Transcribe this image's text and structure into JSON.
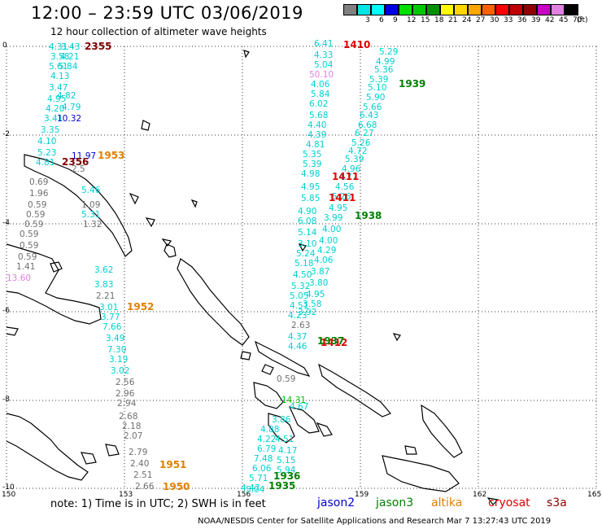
{
  "header": {
    "title": "12:00 – 23:59 UTC 03/06/2019",
    "subtitle": "12 hour collection of altimeter wave heights"
  },
  "legend": {
    "unit_label": "(ft)",
    "items": [
      {
        "label": "",
        "color": "#808080"
      },
      {
        "label": "3",
        "color": "#00e5e5"
      },
      {
        "label": "6",
        "color": "#00ffff"
      },
      {
        "label": "9",
        "color": "#0000e0"
      },
      {
        "label": "12",
        "color": "#00e000"
      },
      {
        "label": "15",
        "color": "#00c800"
      },
      {
        "label": "18",
        "color": "#009000"
      },
      {
        "label": "21",
        "color": "#ffff00"
      },
      {
        "label": "24",
        "color": "#ffd700"
      },
      {
        "label": "27",
        "color": "#ffa500"
      },
      {
        "label": "30",
        "color": "#ff6000"
      },
      {
        "label": "33",
        "color": "#ff0000"
      },
      {
        "label": "36",
        "color": "#c00000"
      },
      {
        "label": "39",
        "color": "#900000"
      },
      {
        "label": "42",
        "color": "#c800c8"
      },
      {
        "label": "45",
        "color": "#e080e0"
      },
      {
        "label": "70",
        "color": "#000000"
      }
    ]
  },
  "axes": {
    "lat_labels": [
      "0",
      "-2",
      "-4",
      "-6",
      "-8",
      "-10"
    ],
    "lon_labels": [
      "150",
      "153",
      "156",
      "159",
      "162",
      "165"
    ]
  },
  "observations": [
    {
      "text": "4.31",
      "color": "#00d0d0"
    },
    {
      "text": "3.43",
      "color": "#00d0d0"
    },
    {
      "text": "3.58",
      "color": "#00d0d0"
    },
    {
      "text": "4.21",
      "color": "#00d0d0"
    },
    {
      "text": "5.61",
      "color": "#00d0d0"
    },
    {
      "text": "5.84",
      "color": "#00d0d0"
    },
    {
      "text": "4.13",
      "color": "#00d0d0"
    },
    {
      "text": "3.47",
      "color": "#00d0d0"
    },
    {
      "text": "4.82",
      "color": "#00d0d0"
    },
    {
      "text": "4.95",
      "color": "#00d0d0"
    },
    {
      "text": "4.79",
      "color": "#00d0d0"
    },
    {
      "text": "4.20",
      "color": "#00d0d0"
    },
    {
      "text": "3.41",
      "color": "#00d0d0"
    },
    {
      "text": "10.32",
      "color": "#0000d0"
    },
    {
      "text": "3.35",
      "color": "#00d0d0"
    },
    {
      "text": "4.10",
      "color": "#00d0d0"
    },
    {
      "text": "5.23",
      "color": "#00d0d0"
    },
    {
      "text": "4.81",
      "color": "#00d0d0"
    },
    {
      "text": "11.97",
      "color": "#0000d0"
    },
    {
      "text": "2.5",
      "color": "#707070"
    },
    {
      "text": "0.69",
      "color": "#707070"
    },
    {
      "text": "1.96",
      "color": "#707070"
    },
    {
      "text": "0.59",
      "color": "#707070"
    },
    {
      "text": "0.59",
      "color": "#707070"
    },
    {
      "text": "0.59",
      "color": "#707070"
    },
    {
      "text": "0.59",
      "color": "#707070"
    },
    {
      "text": "0.59",
      "color": "#707070"
    },
    {
      "text": "0.59",
      "color": "#707070"
    },
    {
      "text": "1.41",
      "color": "#707070"
    },
    {
      "text": "13.60",
      "color": "#e080e0"
    },
    {
      "text": "5.46",
      "color": "#00d0d0"
    },
    {
      "text": "1.09",
      "color": "#707070"
    },
    {
      "text": "5.31",
      "color": "#00d0d0"
    },
    {
      "text": "1.32",
      "color": "#707070"
    },
    {
      "text": "3.62",
      "color": "#00d0d0"
    },
    {
      "text": "3.83",
      "color": "#00d0d0"
    },
    {
      "text": "2.21",
      "color": "#707070"
    },
    {
      "text": "3.01",
      "color": "#00d0d0"
    },
    {
      "text": "3.77",
      "color": "#00d0d0"
    },
    {
      "text": "7.66",
      "color": "#00d0d0"
    },
    {
      "text": "3.49",
      "color": "#00d0d0"
    },
    {
      "text": "7.30",
      "color": "#00d0d0"
    },
    {
      "text": "3.19",
      "color": "#00d0d0"
    },
    {
      "text": "3.02",
      "color": "#00d0d0"
    },
    {
      "text": "2.56",
      "color": "#707070"
    },
    {
      "text": "2.96",
      "color": "#707070"
    },
    {
      "text": "2.94",
      "color": "#707070"
    },
    {
      "text": "2.68",
      "color": "#707070"
    },
    {
      "text": "2.18",
      "color": "#707070"
    },
    {
      "text": "2.07",
      "color": "#707070"
    },
    {
      "text": "2.79",
      "color": "#707070"
    },
    {
      "text": "2.40",
      "color": "#707070"
    },
    {
      "text": "2.51",
      "color": "#707070"
    },
    {
      "text": "2.66",
      "color": "#707070"
    },
    {
      "text": "6.41",
      "color": "#00d0d0"
    },
    {
      "text": "4.33",
      "color": "#00d0d0"
    },
    {
      "text": "5.04",
      "color": "#00d0d0"
    },
    {
      "text": "50.10",
      "color": "#e080e0"
    },
    {
      "text": "4.06",
      "color": "#00d0d0"
    },
    {
      "text": "5.84",
      "color": "#00d0d0"
    },
    {
      "text": "6.02",
      "color": "#00d0d0"
    },
    {
      "text": "5.68",
      "color": "#00d0d0"
    },
    {
      "text": "4.40",
      "color": "#00d0d0"
    },
    {
      "text": "4.39",
      "color": "#00d0d0"
    },
    {
      "text": "4.81",
      "color": "#00d0d0"
    },
    {
      "text": "5.35",
      "color": "#00d0d0"
    },
    {
      "text": "5.39",
      "color": "#00d0d0"
    },
    {
      "text": "4.98",
      "color": "#00d0d0"
    },
    {
      "text": "4.95",
      "color": "#00d0d0"
    },
    {
      "text": "5.85",
      "color": "#00d0d0"
    },
    {
      "text": "4.90",
      "color": "#00d0d0"
    },
    {
      "text": "6.08",
      "color": "#00d0d0"
    },
    {
      "text": "5.14",
      "color": "#00d0d0"
    },
    {
      "text": "3.10",
      "color": "#00d0d0"
    },
    {
      "text": "5.24",
      "color": "#00d0d0"
    },
    {
      "text": "5.18",
      "color": "#00d0d0"
    },
    {
      "text": "4.50",
      "color": "#00d0d0"
    },
    {
      "text": "5.32",
      "color": "#00d0d0"
    },
    {
      "text": "5.05",
      "color": "#00d0d0"
    },
    {
      "text": "4.51",
      "color": "#00d0d0"
    },
    {
      "text": "4.23",
      "color": "#00d0d0"
    },
    {
      "text": "2.63",
      "color": "#707070"
    },
    {
      "text": "4.37",
      "color": "#00d0d0"
    },
    {
      "text": "4.46",
      "color": "#00d0d0"
    },
    {
      "text": "5.29",
      "color": "#00d0d0"
    },
    {
      "text": "4.99",
      "color": "#00d0d0"
    },
    {
      "text": "5.36",
      "color": "#00d0d0"
    },
    {
      "text": "5.39",
      "color": "#00d0d0"
    },
    {
      "text": "5.10",
      "color": "#00d0d0"
    },
    {
      "text": "5.90",
      "color": "#00d0d0"
    },
    {
      "text": "5.66",
      "color": "#00d0d0"
    },
    {
      "text": "6.43",
      "color": "#00d0d0"
    },
    {
      "text": "6.68",
      "color": "#00d0d0"
    },
    {
      "text": "6.27",
      "color": "#00d0d0"
    },
    {
      "text": "5.26",
      "color": "#00d0d0"
    },
    {
      "text": "4.72",
      "color": "#00d0d0"
    },
    {
      "text": "5.39",
      "color": "#00d0d0"
    },
    {
      "text": "4.96",
      "color": "#00d0d0"
    },
    {
      "text": "4.77",
      "color": "#00d0d0"
    },
    {
      "text": "4.56",
      "color": "#00d0d0"
    },
    {
      "text": "5.26",
      "color": "#00d0d0"
    },
    {
      "text": "4.95",
      "color": "#00d0d0"
    },
    {
      "text": "3.99",
      "color": "#00d0d0"
    },
    {
      "text": "4.00",
      "color": "#00d0d0"
    },
    {
      "text": "4.00",
      "color": "#00d0d0"
    },
    {
      "text": "4.29",
      "color": "#00d0d0"
    },
    {
      "text": "4.06",
      "color": "#00d0d0"
    },
    {
      "text": "3.87",
      "color": "#00d0d0"
    },
    {
      "text": "3.80",
      "color": "#00d0d0"
    },
    {
      "text": "4.95",
      "color": "#00d0d0"
    },
    {
      "text": "3.58",
      "color": "#00d0d0"
    },
    {
      "text": "3.92",
      "color": "#00d0d0"
    },
    {
      "text": "0.59",
      "color": "#707070"
    },
    {
      "text": "14.31",
      "color": "#00c000"
    },
    {
      "text": "3.86",
      "color": "#00d0d0"
    },
    {
      "text": "4.88",
      "color": "#00d0d0"
    },
    {
      "text": "4.22",
      "color": "#00d0d0"
    },
    {
      "text": "6.79",
      "color": "#00d0d0"
    },
    {
      "text": "7.48",
      "color": "#00d0d0"
    },
    {
      "text": "6.06",
      "color": "#00d0d0"
    },
    {
      "text": "5.71",
      "color": "#00d0d0"
    },
    {
      "text": "5.04",
      "color": "#00d0d0"
    },
    {
      "text": "4.47",
      "color": "#00d0d0"
    },
    {
      "text": "4.51",
      "color": "#00d0d0"
    },
    {
      "text": "4.17",
      "color": "#00d0d0"
    },
    {
      "text": "5.15",
      "color": "#00d0d0"
    },
    {
      "text": "5.94",
      "color": "#00d0d0"
    },
    {
      "text": "4.67",
      "color": "#00d0d0"
    }
  ],
  "time_labels": [
    {
      "text": "2355",
      "color": "#800000"
    },
    {
      "text": "2356",
      "color": "#800000"
    },
    {
      "text": "1953",
      "color": "#e08000"
    },
    {
      "text": "1952",
      "color": "#e08000"
    },
    {
      "text": "1951",
      "color": "#e08000"
    },
    {
      "text": "1950",
      "color": "#e08000"
    },
    {
      "text": "1410",
      "color": "#e00000"
    },
    {
      "text": "1411",
      "color": "#e00000"
    },
    {
      "text": "1411",
      "color": "#e00000"
    },
    {
      "text": "1412",
      "color": "#e00000"
    },
    {
      "text": "1939",
      "color": "#008000"
    },
    {
      "text": "1938",
      "color": "#008000"
    },
    {
      "text": "1937",
      "color": "#008000"
    },
    {
      "text": "1936",
      "color": "#008000"
    },
    {
      "text": "1935",
      "color": "#008000"
    }
  ],
  "footer": {
    "note": "note:  1) Time is in UTC;  2) SWH is in feet",
    "missions": [
      {
        "label": "jason2",
        "color": "#0000d0"
      },
      {
        "label": "jason3",
        "color": "#008000"
      },
      {
        "label": "altika",
        "color": "#e08000"
      },
      {
        "label": "cryosat",
        "color": "#e00000"
      },
      {
        "label": "s3a",
        "color": "#900000"
      }
    ],
    "credit": "NOAA/NESDIS Center for Satellite Applications and Research    Mar  7 13:27:43 UTC 2019"
  }
}
